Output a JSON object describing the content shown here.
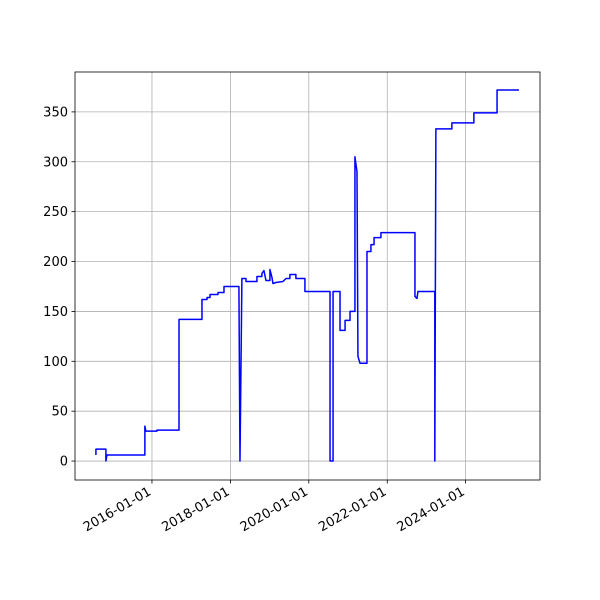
{
  "chart_data": {
    "type": "line",
    "x": [
      "2014-07-28",
      "2014-07-28",
      "2014-10-29",
      "2014-10-29",
      "2014-11-07",
      "2015-10-27",
      "2015-10-27",
      "2015-11-05",
      "2016-02-16",
      "2016-02-16",
      "2016-09-09",
      "2016-09-09",
      "2017-04-11",
      "2017-04-11",
      "2017-05-28",
      "2017-05-28",
      "2017-06-25",
      "2017-06-25",
      "2017-09-07",
      "2017-09-07",
      "2017-11-02",
      "2017-11-02",
      "2018-03-21",
      "2018-03-31",
      "2018-04-18",
      "2018-05-26",
      "2018-05-26",
      "2018-09-05",
      "2018-09-05",
      "2018-10-21",
      "2018-10-21",
      "2018-11-09",
      "2018-11-28",
      "2019-01-04",
      "2019-01-04",
      "2019-01-23",
      "2019-02-01",
      "2019-03-01",
      "2019-05-05",
      "2019-06-03",
      "2019-07-09",
      "2019-07-09",
      "2019-09-03",
      "2019-09-03",
      "2019-11-26",
      "2019-11-26",
      "2020-07-17",
      "2020-07-17",
      "2020-08-14",
      "2020-08-14",
      "2020-10-18",
      "2020-10-18",
      "2020-12-04",
      "2020-12-04",
      "2021-01-19",
      "2021-01-19",
      "2021-03-06",
      "2021-03-06",
      "2021-03-25",
      "2021-04-03",
      "2021-04-22",
      "2021-06-26",
      "2021-06-26",
      "2021-08-02",
      "2021-08-02",
      "2021-08-31",
      "2021-08-31",
      "2021-11-03",
      "2021-11-03",
      "2022-09-16",
      "2022-09-16",
      "2022-10-05",
      "2022-10-14",
      "2023-03-20",
      "2023-03-20",
      "2023-03-30",
      "2023-08-26",
      "2023-08-26",
      "2024-03-18",
      "2024-03-18",
      "2024-10-20",
      "2024-10-20",
      "2025-05-12"
    ],
    "series": [
      {
        "color": "blue",
        "values": [
          6,
          12,
          12,
          0,
          6,
          6,
          35,
          30,
          30,
          31,
          31,
          142,
          142,
          162,
          162,
          164,
          164,
          167,
          167,
          169,
          169,
          175,
          175,
          0,
          183,
          183,
          180,
          180,
          185,
          185,
          188,
          191,
          181,
          181,
          192,
          184,
          178,
          179,
          180,
          183,
          183,
          187,
          187,
          183,
          183,
          170,
          170,
          0,
          0,
          170,
          170,
          131,
          131,
          141,
          141,
          150,
          150,
          305,
          290,
          105,
          98,
          98,
          210,
          210,
          217,
          217,
          224,
          224,
          229,
          229,
          165,
          163,
          170,
          170,
          0,
          333,
          333,
          339,
          339,
          349,
          349,
          372,
          372
        ]
      }
    ],
    "xlim": [
      "2014-01-14",
      "2025-11-24"
    ],
    "xticks": [
      "2016-01-01",
      "2018-01-01",
      "2020-01-01",
      "2022-01-01",
      "2024-01-01"
    ],
    "ylim": [
      -19,
      390
    ],
    "yticks": [
      0,
      50,
      100,
      150,
      200,
      250,
      300,
      350
    ],
    "grid": true
  }
}
